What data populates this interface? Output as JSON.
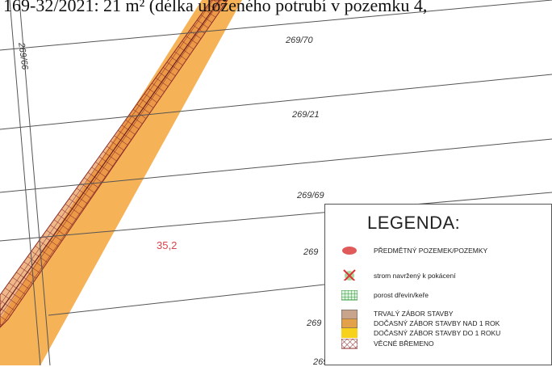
{
  "caption": "169-32/2021: 21 m² (délka uloženého potrubí v pozemku 4,",
  "parcels": {
    "p269_70": "269/70",
    "p269_21": "269/21",
    "p269_69": "269/69",
    "p269_66": "269/66",
    "p269_left": "269",
    "p269_bottom": "269",
    "p269_73": "269/73"
  },
  "measure_value": "35,2",
  "legend": {
    "title": "LEGENDA:",
    "items": [
      {
        "label": "PŘEDMĚTNÝ POZEMEK/POZEMKY",
        "icon": "red-ellipse-icon"
      },
      {
        "label": "strom navržený k pokácení",
        "icon": "tree-cross-icon"
      },
      {
        "label": "porost dřevin/keře",
        "icon": "shrub-hatch-icon"
      },
      {
        "label": "TRVALÝ ZÁBOR STAVBY",
        "icon": "permanent-occupation-icon"
      },
      {
        "label": "DOČASNÝ ZÁBOR STAVBY NAD 1 ROK",
        "icon": "temporary-over-year-icon"
      },
      {
        "label": "DOČASNÝ ZÁBOR STAVBY DO 1 ROKU",
        "icon": "temporary-under-year-icon"
      },
      {
        "label": "VĚCNÉ BŘEMENO",
        "icon": "easement-hatch-icon"
      }
    ]
  },
  "colors": {
    "orange_band": "#f4a43a",
    "band_core": "#e4893a",
    "hatch": "#8b2b2b",
    "parcel_line": "#555555",
    "red": "#e05a5a"
  }
}
